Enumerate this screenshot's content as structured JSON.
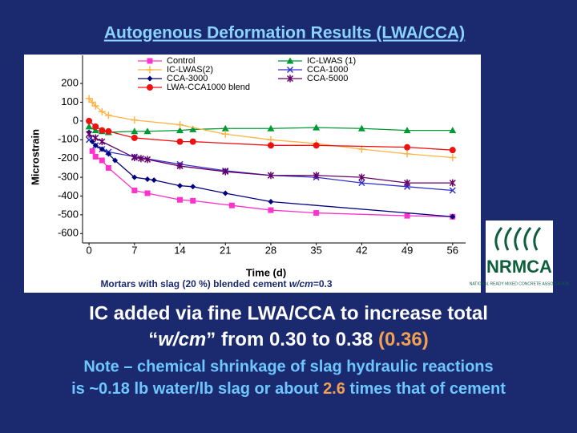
{
  "slide": {
    "title": "Autogenous Deformation Results (LWA/CCA)",
    "chart_note": [
      "Mortars with slag (20 %) blended cement  ",
      "w/cm",
      "=0.3"
    ],
    "body_line1": "IC added via fine LWA/CCA to increase total",
    "body_line2": [
      "“",
      "w/cm",
      "” from 0.30 to 0.38 ",
      "(0.36)"
    ],
    "note_line1": "Note – chemical shrinkage of slag hydraulic reactions",
    "note_line2": [
      "is ~0.18 lb water/lb slag or about ",
      "2.6",
      " times that of cement"
    ],
    "logo": {
      "name": "NRMCA",
      "subtitle": "NATIONAL READY MIXED CONCRETE ASSOCIATION"
    }
  },
  "chart_data": {
    "type": "line",
    "x_label": "Time (d)",
    "y_label": "Microstrain",
    "xlim": [
      -1,
      58
    ],
    "ylim": [
      -650,
      350
    ],
    "xticks": [
      0,
      7,
      14,
      21,
      28,
      35,
      42,
      49,
      56
    ],
    "yticks": [
      200,
      100,
      0,
      -100,
      -200,
      -300,
      -400,
      -500,
      -600
    ],
    "grid": false,
    "series": [
      {
        "name": "Control",
        "color": "#ff33cc",
        "marker": "square",
        "x": [
          0.5,
          1,
          2,
          3,
          7,
          9,
          14,
          16,
          22,
          28,
          35,
          49,
          56
        ],
        "values": [
          -160,
          -190,
          -210,
          -250,
          -370,
          -385,
          -420,
          -425,
          -450,
          -475,
          -490,
          -505,
          -510
        ]
      },
      {
        "name": "IC-LWAS (1)",
        "color": "#009933",
        "marker": "triangle",
        "x": [
          0,
          1,
          2,
          3,
          7,
          9,
          14,
          16,
          21,
          28,
          35,
          42,
          49,
          56
        ],
        "values": [
          -30,
          -50,
          -55,
          -60,
          -55,
          -55,
          -50,
          -45,
          -40,
          -40,
          -35,
          -40,
          -50,
          -50
        ]
      },
      {
        "name": "IC-LWAS(2)",
        "color": "#ffb347",
        "marker": "plus",
        "x": [
          0,
          0.5,
          1,
          2,
          3,
          7,
          14,
          21,
          28,
          35,
          42,
          49,
          56
        ],
        "values": [
          120,
          100,
          80,
          50,
          30,
          5,
          -20,
          -70,
          -100,
          -120,
          -150,
          -175,
          -195
        ]
      },
      {
        "name": "CCA-1000",
        "color": "#3333cc",
        "marker": "x",
        "x": [
          0,
          1,
          2,
          3,
          7,
          14,
          21,
          28,
          35,
          42,
          49,
          56
        ],
        "values": [
          -100,
          -130,
          -150,
          -165,
          -190,
          -230,
          -265,
          -290,
          -300,
          -330,
          -350,
          -370
        ]
      },
      {
        "name": "CCA-3000",
        "color": "#000080",
        "marker": "diamond",
        "x": [
          0,
          0.5,
          1,
          2,
          3,
          4,
          7,
          9,
          10,
          14,
          16,
          21,
          28,
          56
        ],
        "values": [
          -60,
          -110,
          -130,
          -150,
          -175,
          -210,
          -300,
          -310,
          -315,
          -345,
          -350,
          -385,
          -430,
          -510
        ]
      },
      {
        "name": "CCA-5000",
        "color": "#660066",
        "marker": "asterisk",
        "x": [
          0,
          1,
          2,
          7,
          8,
          9,
          14,
          21,
          28,
          35,
          42,
          49,
          56
        ],
        "values": [
          -70,
          -90,
          -110,
          -195,
          -200,
          -205,
          -240,
          -270,
          -290,
          -290,
          -300,
          -330,
          -330
        ]
      },
      {
        "name": "LWA-CCA1000 blend",
        "color": "#ee1111",
        "marker": "circle",
        "x": [
          0,
          1,
          2,
          3,
          7,
          14,
          16,
          28,
          35,
          49,
          56
        ],
        "values": [
          0,
          -30,
          -50,
          -55,
          -90,
          -110,
          -110,
          -130,
          -130,
          -140,
          -155
        ]
      }
    ]
  }
}
